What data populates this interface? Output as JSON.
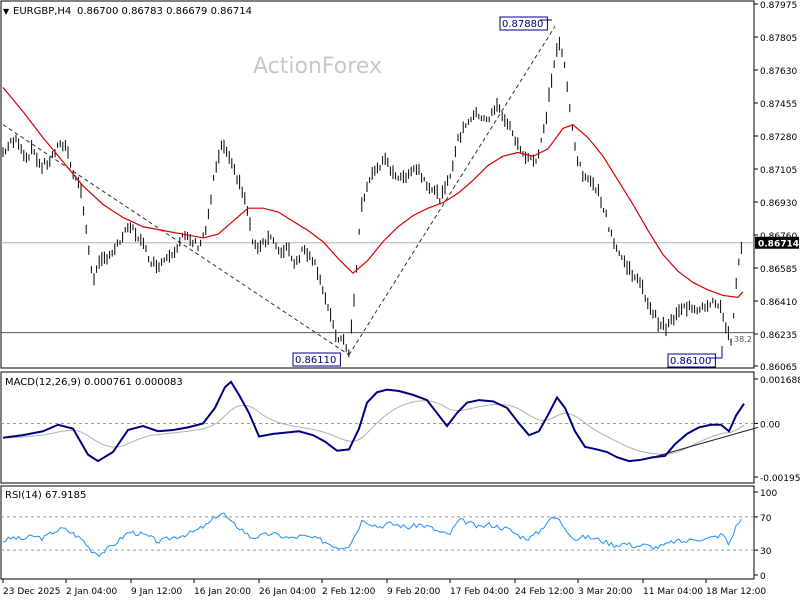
{
  "header": {
    "symbol": "EURGBP,H4",
    "ohlc": "0.86700 0.86783 0.86679 0.86714",
    "watermark": "ActionForex"
  },
  "price_axis": {
    "ticks": [
      "0.87975",
      "0.87805",
      "0.87630",
      "0.87455",
      "0.87280",
      "0.87105",
      "0.86930",
      "0.86760",
      "0.86585",
      "0.86410",
      "0.86235",
      "0.86065"
    ],
    "current": "0.86714",
    "range": [
      0.8605,
      0.88
    ]
  },
  "annotations": {
    "high": "0.87880",
    "low1": "0.86110",
    "low2": "0.86100",
    "fib": "38.2"
  },
  "macd": {
    "title": "MACD(12,26,9) 0.000761 0.000083",
    "ticks": [
      "0.001688",
      "0.00",
      "-0.001953"
    ]
  },
  "rsi": {
    "title": "RSI(14) 67.9185",
    "ticks": [
      "100",
      "70",
      "30",
      "0"
    ]
  },
  "time_axis": {
    "labels": [
      "23 Dec 2025",
      "2 Jan 04:00",
      "9 Jan 12:00",
      "16 Jan 20:00",
      "26 Jan 04:00",
      "2 Feb 12:00",
      "9 Feb 20:00",
      "17 Feb 04:00",
      "24 Feb 12:00",
      "3 Mar 20:00",
      "11 Mar 04:00",
      "18 Mar 12:00"
    ]
  },
  "colors": {
    "bars": "#000000",
    "ma": "#d40000",
    "macd": "#000080",
    "signal": "#b0b0b0",
    "rsi": "#1e90ff",
    "label_border": "#000080"
  },
  "chart_data": {
    "type": "line",
    "price_points": [
      [
        0,
        0.872
      ],
      [
        8,
        0.8725
      ],
      [
        15,
        0.8727
      ],
      [
        23,
        0.8717
      ],
      [
        30,
        0.8722
      ],
      [
        38,
        0.8712
      ],
      [
        46,
        0.8715
      ],
      [
        54,
        0.8722
      ],
      [
        62,
        0.8725
      ],
      [
        70,
        0.871
      ],
      [
        78,
        0.87
      ],
      [
        83,
        0.8678
      ],
      [
        90,
        0.8652
      ],
      [
        97,
        0.866
      ],
      [
        105,
        0.8665
      ],
      [
        112,
        0.8667
      ],
      [
        120,
        0.8675
      ],
      [
        128,
        0.868
      ],
      [
        135,
        0.8675
      ],
      [
        142,
        0.8668
      ],
      [
        150,
        0.866
      ],
      [
        157,
        0.866
      ],
      [
        165,
        0.8665
      ],
      [
        172,
        0.8668
      ],
      [
        180,
        0.8675
      ],
      [
        188,
        0.8672
      ],
      [
        196,
        0.867
      ],
      [
        204,
        0.868
      ],
      [
        212,
        0.871
      ],
      [
        220,
        0.8725
      ],
      [
        228,
        0.8713
      ],
      [
        236,
        0.8705
      ],
      [
        244,
        0.869
      ],
      [
        251,
        0.8668
      ],
      [
        260,
        0.8672
      ],
      [
        268,
        0.8675
      ],
      [
        276,
        0.8665
      ],
      [
        284,
        0.867
      ],
      [
        292,
        0.866
      ],
      [
        300,
        0.8668
      ],
      [
        308,
        0.8665
      ],
      [
        316,
        0.8655
      ],
      [
        324,
        0.8638
      ],
      [
        332,
        0.8622
      ],
      [
        340,
        0.8618
      ],
      [
        346,
        0.8613
      ],
      [
        352,
        0.8645
      ],
      [
        358,
        0.869
      ],
      [
        366,
        0.8705
      ],
      [
        374,
        0.8712
      ],
      [
        382,
        0.8715
      ],
      [
        390,
        0.871
      ],
      [
        398,
        0.8705
      ],
      [
        406,
        0.871
      ],
      [
        414,
        0.8712
      ],
      [
        422,
        0.8705
      ],
      [
        430,
        0.87
      ],
      [
        438,
        0.8695
      ],
      [
        446,
        0.8705
      ],
      [
        454,
        0.8725
      ],
      [
        462,
        0.8735
      ],
      [
        470,
        0.874
      ],
      [
        478,
        0.874
      ],
      [
        486,
        0.8738
      ],
      [
        494,
        0.8745
      ],
      [
        502,
        0.8738
      ],
      [
        510,
        0.873
      ],
      [
        518,
        0.872
      ],
      [
        526,
        0.8718
      ],
      [
        534,
        0.8715
      ],
      [
        542,
        0.8735
      ],
      [
        550,
        0.8765
      ],
      [
        556,
        0.878
      ],
      [
        562,
        0.8765
      ],
      [
        568,
        0.8738
      ],
      [
        575,
        0.8715
      ],
      [
        582,
        0.8705
      ],
      [
        590,
        0.8705
      ],
      [
        598,
        0.8695
      ],
      [
        606,
        0.868
      ],
      [
        614,
        0.8668
      ],
      [
        622,
        0.866
      ],
      [
        630,
        0.8655
      ],
      [
        638,
        0.8648
      ],
      [
        646,
        0.8638
      ],
      [
        654,
        0.863
      ],
      [
        662,
        0.8625
      ],
      [
        670,
        0.863
      ],
      [
        678,
        0.8635
      ],
      [
        686,
        0.8638
      ],
      [
        694,
        0.8636
      ],
      [
        702,
        0.8638
      ],
      [
        710,
        0.864
      ],
      [
        718,
        0.8635
      ],
      [
        724,
        0.8625
      ],
      [
        728,
        0.8618
      ],
      [
        733,
        0.8648
      ],
      [
        737,
        0.8665
      ],
      [
        741,
        0.8671
      ]
    ],
    "ma_points": [
      [
        0,
        0.8755
      ],
      [
        20,
        0.8742
      ],
      [
        40,
        0.8728
      ],
      [
        60,
        0.8715
      ],
      [
        80,
        0.8702
      ],
      [
        100,
        0.8692
      ],
      [
        120,
        0.8685
      ],
      [
        140,
        0.868
      ],
      [
        160,
        0.8678
      ],
      [
        180,
        0.8676
      ],
      [
        200,
        0.8674
      ],
      [
        215,
        0.8676
      ],
      [
        230,
        0.8683
      ],
      [
        245,
        0.869
      ],
      [
        260,
        0.869
      ],
      [
        275,
        0.8688
      ],
      [
        290,
        0.8683
      ],
      [
        305,
        0.8678
      ],
      [
        320,
        0.8672
      ],
      [
        335,
        0.8663
      ],
      [
        350,
        0.8655
      ],
      [
        365,
        0.8662
      ],
      [
        380,
        0.8672
      ],
      [
        395,
        0.868
      ],
      [
        410,
        0.8686
      ],
      [
        425,
        0.869
      ],
      [
        440,
        0.8693
      ],
      [
        455,
        0.8698
      ],
      [
        470,
        0.8705
      ],
      [
        485,
        0.8713
      ],
      [
        500,
        0.8718
      ],
      [
        515,
        0.872
      ],
      [
        530,
        0.8718
      ],
      [
        545,
        0.8722
      ],
      [
        560,
        0.8733
      ],
      [
        570,
        0.8735
      ],
      [
        585,
        0.8728
      ],
      [
        600,
        0.8718
      ],
      [
        615,
        0.8705
      ],
      [
        630,
        0.8692
      ],
      [
        645,
        0.8678
      ],
      [
        660,
        0.8665
      ],
      [
        675,
        0.8656
      ],
      [
        690,
        0.865
      ],
      [
        705,
        0.8646
      ],
      [
        720,
        0.8643
      ],
      [
        735,
        0.8642
      ],
      [
        740,
        0.8645
      ]
    ],
    "trendlines": [
      {
        "from": [
          0,
          0.8735
        ],
        "to": [
          346,
          0.8611
        ],
        "style": "dashed"
      },
      {
        "from": [
          346,
          0.8611
        ],
        "to": [
          552,
          0.8788
        ],
        "style": "dashed"
      }
    ],
    "support_line": 0.8623,
    "macd_values": [
      [
        0,
        -0.00055
      ],
      [
        20,
        -0.00045
      ],
      [
        40,
        -0.0003
      ],
      [
        55,
        -5e-05
      ],
      [
        70,
        -0.0002
      ],
      [
        85,
        -0.0012
      ],
      [
        95,
        -0.00145
      ],
      [
        110,
        -0.0011
      ],
      [
        125,
        -0.00025
      ],
      [
        140,
        -0.0001
      ],
      [
        155,
        -0.0003
      ],
      [
        170,
        -0.00025
      ],
      [
        185,
        -0.00015
      ],
      [
        200,
        0.0
      ],
      [
        212,
        0.0006
      ],
      [
        222,
        0.0014
      ],
      [
        228,
        0.0016
      ],
      [
        236,
        0.0011
      ],
      [
        246,
        0.0004
      ],
      [
        256,
        -0.0005
      ],
      [
        270,
        -0.0004
      ],
      [
        284,
        -0.00035
      ],
      [
        296,
        -0.0003
      ],
      [
        310,
        -0.00045
      ],
      [
        322,
        -0.0007
      ],
      [
        334,
        -0.00105
      ],
      [
        346,
        -0.001
      ],
      [
        356,
        -0.0002
      ],
      [
        364,
        0.0008
      ],
      [
        374,
        0.0012
      ],
      [
        384,
        0.0013
      ],
      [
        396,
        0.00125
      ],
      [
        410,
        0.0011
      ],
      [
        424,
        0.0009
      ],
      [
        434,
        0.0004
      ],
      [
        444,
        -0.0001
      ],
      [
        454,
        0.0004
      ],
      [
        464,
        0.0008
      ],
      [
        476,
        0.0009
      ],
      [
        490,
        0.00085
      ],
      [
        504,
        0.0006
      ],
      [
        516,
        0.0
      ],
      [
        526,
        -0.00045
      ],
      [
        536,
        -0.0003
      ],
      [
        546,
        0.0004
      ],
      [
        554,
        0.001
      ],
      [
        562,
        0.0006
      ],
      [
        572,
        -0.0003
      ],
      [
        582,
        -0.0009
      ],
      [
        594,
        -0.001
      ],
      [
        604,
        -0.0011
      ],
      [
        614,
        -0.0013
      ],
      [
        626,
        -0.00145
      ],
      [
        638,
        -0.0014
      ],
      [
        650,
        -0.0013
      ],
      [
        662,
        -0.00125
      ],
      [
        672,
        -0.0008
      ],
      [
        684,
        -0.0004
      ],
      [
        696,
        -0.00015
      ],
      [
        708,
        -5e-05
      ],
      [
        718,
        -5e-05
      ],
      [
        726,
        -0.0003
      ],
      [
        733,
        0.0003
      ],
      [
        741,
        0.00076
      ]
    ],
    "macd_trendline": {
      "from": [
        650,
        -0.0013
      ],
      "to": [
        755,
        -0.00015
      ]
    },
    "rsi_values": [
      [
        0,
        41
      ],
      [
        10,
        45
      ],
      [
        20,
        43
      ],
      [
        30,
        47
      ],
      [
        40,
        44
      ],
      [
        50,
        52
      ],
      [
        60,
        56
      ],
      [
        70,
        50
      ],
      [
        80,
        42
      ],
      [
        88,
        30
      ],
      [
        96,
        25
      ],
      [
        106,
        32
      ],
      [
        116,
        42
      ],
      [
        126,
        52
      ],
      [
        136,
        50
      ],
      [
        146,
        46
      ],
      [
        156,
        40
      ],
      [
        166,
        44
      ],
      [
        176,
        47
      ],
      [
        186,
        50
      ],
      [
        196,
        55
      ],
      [
        206,
        62
      ],
      [
        214,
        72
      ],
      [
        220,
        75
      ],
      [
        228,
        63
      ],
      [
        238,
        56
      ],
      [
        248,
        45
      ],
      [
        258,
        47
      ],
      [
        268,
        50
      ],
      [
        278,
        47
      ],
      [
        288,
        44
      ],
      [
        298,
        47
      ],
      [
        308,
        45
      ],
      [
        318,
        42
      ],
      [
        328,
        37
      ],
      [
        336,
        33
      ],
      [
        346,
        36
      ],
      [
        352,
        48
      ],
      [
        360,
        68
      ],
      [
        366,
        63
      ],
      [
        376,
        58
      ],
      [
        386,
        62
      ],
      [
        396,
        60
      ],
      [
        406,
        57
      ],
      [
        416,
        61
      ],
      [
        426,
        58
      ],
      [
        436,
        52
      ],
      [
        446,
        48
      ],
      [
        456,
        66
      ],
      [
        466,
        63
      ],
      [
        476,
        57
      ],
      [
        486,
        61
      ],
      [
        496,
        58
      ],
      [
        506,
        55
      ],
      [
        516,
        47
      ],
      [
        526,
        44
      ],
      [
        536,
        52
      ],
      [
        546,
        67
      ],
      [
        554,
        69
      ],
      [
        562,
        57
      ],
      [
        572,
        43
      ],
      [
        582,
        46
      ],
      [
        592,
        44
      ],
      [
        602,
        40
      ],
      [
        612,
        36
      ],
      [
        622,
        38
      ],
      [
        632,
        35
      ],
      [
        642,
        36
      ],
      [
        652,
        33
      ],
      [
        662,
        36
      ],
      [
        672,
        41
      ],
      [
        682,
        40
      ],
      [
        692,
        44
      ],
      [
        702,
        43
      ],
      [
        712,
        46
      ],
      [
        720,
        49
      ],
      [
        726,
        36
      ],
      [
        732,
        56
      ],
      [
        737,
        66
      ],
      [
        741,
        68
      ]
    ]
  }
}
